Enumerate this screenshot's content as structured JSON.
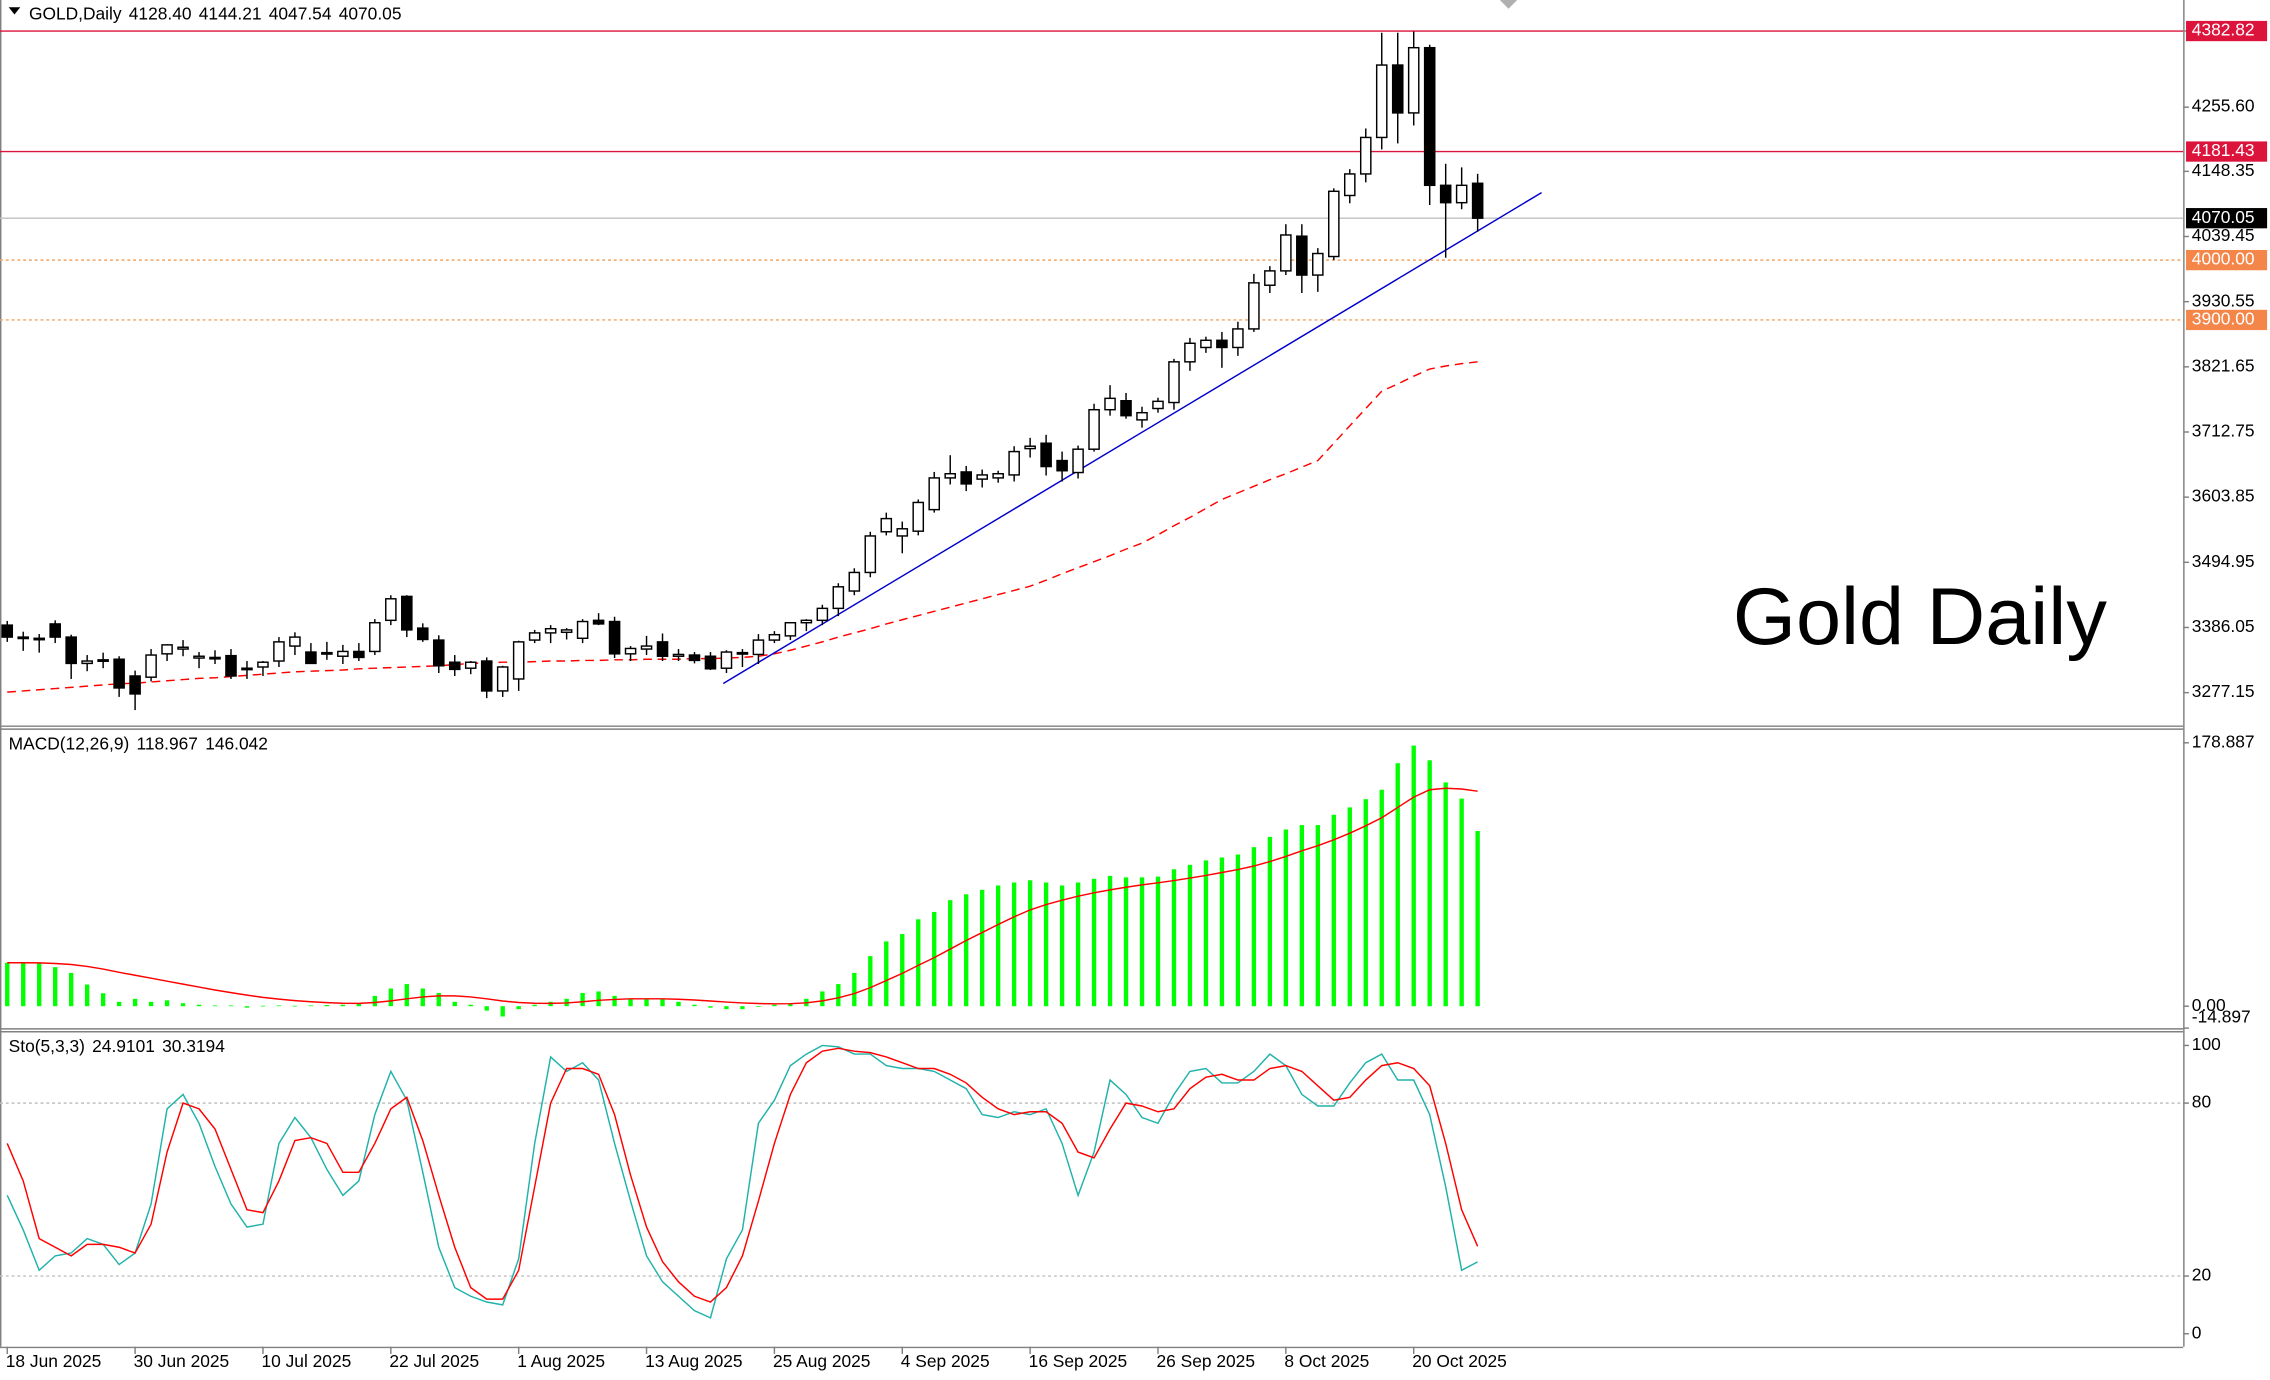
{
  "chart_data": [
    {
      "type": "candlestick",
      "title": "GOLD,Daily",
      "header_values": [
        "4128.40",
        "4144.21",
        "4047.54",
        "4070.05"
      ],
      "categories": [
        "18 Jun 2025",
        null,
        null,
        null,
        null,
        null,
        null,
        null,
        "30 Jun 2025",
        null,
        null,
        null,
        null,
        null,
        null,
        null,
        "10 Jul 2025",
        null,
        null,
        null,
        null,
        null,
        null,
        null,
        "22 Jul 2025",
        null,
        null,
        null,
        null,
        null,
        null,
        null,
        "1 Aug 2025",
        null,
        null,
        null,
        null,
        null,
        null,
        null,
        "13 Aug 2025",
        null,
        null,
        null,
        null,
        null,
        null,
        null,
        "25 Aug 2025",
        null,
        null,
        null,
        null,
        null,
        null,
        null,
        "4 Sep 2025",
        null,
        null,
        null,
        null,
        null,
        null,
        null,
        "16 Sep 2025",
        null,
        null,
        null,
        null,
        null,
        null,
        null,
        "26 Sep 2025",
        null,
        null,
        null,
        null,
        null,
        null,
        null,
        "8 Oct 2025",
        null,
        null,
        null,
        null,
        null,
        null,
        null,
        "20 Oct 2025",
        null,
        null,
        null,
        null
      ],
      "open": [
        3390,
        3370,
        3368,
        3392,
        3370,
        3326,
        3330,
        3333,
        3305,
        3303,
        3342,
        3350,
        3335,
        3336,
        3339,
        3318,
        3320,
        3330,
        3355,
        3345,
        3344,
        3338,
        3346,
        3346,
        3398,
        3438,
        3385,
        3365,
        3328,
        3318,
        3330,
        3280,
        3300,
        3365,
        3377,
        3378,
        3368,
        3398,
        3396,
        3342,
        3350,
        3362,
        3338,
        3340,
        3338,
        3318,
        3343,
        3341,
        3365,
        3372,
        3394,
        3398,
        3418,
        3447,
        3478,
        3546,
        3539,
        3547,
        3583,
        3636,
        3646,
        3634,
        3636,
        3641,
        3685,
        3694,
        3665,
        3645,
        3684,
        3750,
        3765,
        3733,
        3752,
        3762,
        3830,
        3854,
        3866,
        3854,
        3885,
        3958,
        3982,
        4040,
        3975,
        4006,
        4108,
        4144,
        4205,
        4326,
        4246,
        4355,
        4125,
        4096,
        4128.4
      ],
      "high": [
        3397,
        3379,
        3375,
        3398,
        3374,
        3340,
        3344,
        3338,
        3314,
        3350,
        3358,
        3365,
        3345,
        3348,
        3350,
        3330,
        3330,
        3370,
        3378,
        3360,
        3362,
        3357,
        3360,
        3400,
        3440,
        3440,
        3393,
        3373,
        3340,
        3330,
        3336,
        3322,
        3364,
        3382,
        3390,
        3385,
        3400,
        3410,
        3404,
        3355,
        3372,
        3376,
        3350,
        3345,
        3345,
        3348,
        3350,
        3375,
        3380,
        3395,
        3400,
        3424,
        3460,
        3485,
        3546,
        3578,
        3563,
        3600,
        3646,
        3674,
        3656,
        3650,
        3648,
        3689,
        3703,
        3708,
        3680,
        3690,
        3760,
        3791,
        3778,
        3755,
        3770,
        3835,
        3870,
        3872,
        3880,
        3897,
        3977,
        3990,
        4060,
        4060,
        4020,
        4120,
        4152,
        4220,
        4380,
        4380,
        4382,
        4360,
        4161,
        4155,
        4144.21
      ],
      "low": [
        3362,
        3347,
        3344,
        3360,
        3300,
        3313,
        3318,
        3270,
        3248,
        3296,
        3330,
        3338,
        3318,
        3325,
        3300,
        3300,
        3305,
        3320,
        3340,
        3330,
        3332,
        3325,
        3330,
        3340,
        3390,
        3370,
        3362,
        3310,
        3305,
        3308,
        3268,
        3270,
        3280,
        3360,
        3360,
        3366,
        3360,
        3390,
        3335,
        3330,
        3340,
        3330,
        3330,
        3326,
        3315,
        3310,
        3320,
        3325,
        3360,
        3365,
        3380,
        3390,
        3405,
        3440,
        3470,
        3540,
        3510,
        3540,
        3578,
        3625,
        3614,
        3620,
        3628,
        3630,
        3670,
        3640,
        3630,
        3635,
        3680,
        3740,
        3735,
        3720,
        3745,
        3750,
        3815,
        3845,
        3820,
        3840,
        3880,
        3945,
        3975,
        3945,
        3947,
        4000,
        4095,
        4130,
        4185,
        4195,
        4225,
        4092,
        4004,
        4085,
        4047.54
      ],
      "close": [
        3370,
        3368,
        3366,
        3370,
        3326,
        3330,
        3332,
        3285,
        3275,
        3340,
        3357,
        3353,
        3338,
        3334,
        3305,
        3316,
        3328,
        3362,
        3370,
        3326,
        3343,
        3346,
        3336,
        3394,
        3434,
        3382,
        3366,
        3322,
        3316,
        3328,
        3280,
        3320,
        3362,
        3377,
        3384,
        3382,
        3396,
        3392,
        3342,
        3351,
        3355,
        3338,
        3341,
        3331,
        3317,
        3345,
        3344,
        3365,
        3374,
        3394,
        3398,
        3418,
        3454,
        3478,
        3539,
        3568,
        3551,
        3595,
        3636,
        3643,
        3626,
        3641,
        3643,
        3680,
        3689,
        3655,
        3648,
        3684,
        3750,
        3769,
        3740,
        3745,
        3764,
        3830,
        3861,
        3866,
        3854,
        3885,
        3962,
        3982,
        4042,
        3975,
        4011,
        4115,
        4144,
        4205,
        4326,
        4246,
        4355,
        4125,
        4096,
        4125,
        4070.05
      ],
      "up_color": "#ffffff",
      "down_color": "#000000",
      "ylim": [
        3224.7,
        4434.7
      ],
      "yticks": [
        4382.82,
        {
          "value": 4255.6,
          "label": "4255.60"
        },
        4148.35,
        4039.45,
        3930.55,
        3821.65,
        3712.75,
        3603.85,
        3494.95,
        3386.05,
        3277.15
      ],
      "moving_average": {
        "color": "#ff0000",
        "values": [
          3278,
          3280,
          3282,
          3284,
          3286,
          3288,
          3290,
          3292,
          3293,
          3295,
          3297,
          3299,
          3301,
          3302,
          3304,
          3306,
          3308,
          3310,
          3312,
          3313,
          3314,
          3315,
          3317,
          3318,
          3319,
          3320,
          3321,
          3322,
          3324,
          3326,
          3327,
          3328,
          3328,
          3329,
          3330,
          3330,
          3331,
          3331,
          3332,
          3332,
          3333,
          3333,
          3333,
          3334,
          3334,
          3335,
          3336,
          3338,
          3342,
          3348,
          3355,
          3362,
          3370,
          3377,
          3384,
          3392,
          3399,
          3406,
          3413,
          3420,
          3427,
          3434,
          3441,
          3448,
          3455,
          3465,
          3476,
          3486,
          3496,
          3506,
          3517,
          3527,
          3541,
          3556,
          3570,
          3585,
          3600,
          3611,
          3622,
          3633,
          3643,
          3654,
          3665,
          3694,
          3723,
          3752,
          3781,
          3793,
          3806,
          3818,
          3823,
          3827,
          3830
        ]
      },
      "trendline": {
        "color": "#0000cd",
        "x": [
          44.8,
          96
        ],
        "values": [
          3292.5,
          4112.8
        ]
      },
      "levels": [
        {
          "value": 4382.82,
          "color": "#dc143c",
          "label_color": "#dc143c",
          "style": "solid"
        },
        {
          "value": 4181.43,
          "color": "#dc143c",
          "label_color": "#dc143c",
          "style": "solid"
        },
        {
          "value": 4070.05,
          "color": "#c0c0c0",
          "label_color": "#000000",
          "style": "solid"
        },
        {
          "value": 4000,
          "label": "4000.00",
          "color": "#f4a460",
          "label_color": "#f4864a",
          "style": "dotted"
        },
        {
          "value": 3900,
          "label": "3900.00",
          "color": "#f4a460",
          "label_color": "#f4864a",
          "style": "dotted"
        }
      ],
      "annotation": "Gold Daily"
    },
    {
      "type": "macd",
      "title": "MACD(12,26,9)",
      "header_values": [
        "118.967",
        "146.042"
      ],
      "series": [
        {
          "style": "bar",
          "color": "#00ff00",
          "values": [
            29.5,
            29.5,
            29.5,
            26.5,
            22.6,
            14.7,
            8.8,
            3,
            5,
            3,
            4,
            2,
            1,
            0.5,
            0.5,
            -1,
            0.3,
            0.5,
            0.3,
            0.5,
            0.8,
            1,
            2,
            7,
            12,
            15,
            12,
            9,
            3,
            1,
            -3,
            -7,
            -2,
            1,
            3,
            5,
            9,
            10,
            7,
            5,
            5,
            5,
            3,
            1,
            -1,
            -2,
            -2,
            0,
            1,
            2,
            5,
            10,
            15,
            22.6,
            34,
            44,
            49,
            59,
            64,
            72,
            76,
            79,
            82,
            84,
            85.5,
            84,
            82,
            84,
            86.5,
            88.5,
            87.5,
            87.5,
            88,
            93,
            96,
            99,
            101,
            103,
            108,
            115,
            120,
            123,
            123,
            130,
            135,
            140.6,
            147,
            165,
            177,
            167,
            152,
            141,
            118.967
          ]
        },
        {
          "style": "line",
          "color": "#ff0000",
          "values": [
            29.5,
            29.5,
            29.4,
            29,
            28.3,
            27,
            25.2,
            23,
            21,
            19,
            17,
            15,
            13,
            11,
            9.2,
            7.5,
            6,
            4.8,
            3.8,
            3,
            2.4,
            2,
            1.9,
            2.5,
            3.6,
            5,
            6.3,
            7,
            7,
            6.3,
            5,
            3.5,
            2.5,
            2,
            1.9,
            2.2,
            3,
            4,
            4.6,
            5,
            5,
            5,
            4.7,
            4.2,
            3.5,
            2.8,
            2.2,
            1.8,
            1.6,
            1.7,
            2.3,
            3.6,
            5.7,
            8.6,
            12.6,
            17.4,
            22.3,
            27.7,
            33,
            38.8,
            44.6,
            50,
            55.5,
            60.7,
            65.4,
            69,
            72,
            74.7,
            77,
            79,
            80.8,
            82.4,
            83.8,
            85.3,
            87,
            88.8,
            90.8,
            92.8,
            95.2,
            98.2,
            101.7,
            105.5,
            109,
            113,
            117.5,
            122.5,
            128,
            135,
            142,
            147,
            148,
            147.5,
            146.042
          ]
        }
      ],
      "ylim": [
        -14.897,
        187.7
      ],
      "yticks": [
        178.887,
        {
          "value": 0,
          "label": "0.00"
        },
        -14.897
      ]
    },
    {
      "type": "stochastic",
      "title": "Sto(5,3,3)",
      "header_values": [
        "24.9101",
        "30.3194"
      ],
      "series": [
        {
          "style": "line",
          "color": "#20b2aa",
          "values": [
            48,
            36,
            22,
            27,
            28,
            33,
            31,
            24,
            28,
            45,
            78,
            83,
            73,
            58,
            45,
            37,
            38,
            66,
            75,
            68,
            57,
            48,
            53,
            76,
            91,
            81,
            56,
            30,
            16,
            13,
            11,
            10,
            26,
            66,
            96,
            91,
            94,
            88,
            66,
            46,
            27,
            18,
            13,
            8,
            5.5,
            26,
            36,
            73,
            81,
            93,
            97,
            100,
            99.5,
            97,
            97,
            93,
            92,
            92,
            91,
            88,
            85,
            76,
            75,
            77,
            76,
            78,
            66,
            48,
            63,
            88,
            83,
            75,
            73,
            83,
            91,
            92,
            87,
            87,
            91,
            97,
            93,
            83,
            79,
            79,
            87,
            94,
            97,
            88,
            88,
            76,
            51,
            22,
            24.9101
          ]
        },
        {
          "style": "line",
          "color": "#ff0000",
          "values": [
            66,
            53,
            33,
            30,
            27,
            31,
            31,
            30,
            28,
            38,
            63,
            80,
            78,
            71,
            57,
            43,
            42,
            53,
            67,
            68,
            66,
            56,
            56,
            66,
            78,
            82,
            67,
            48,
            30,
            16,
            12,
            12,
            22,
            51,
            80,
            92,
            92,
            90,
            76,
            55,
            37,
            25,
            18,
            13,
            11,
            16,
            27,
            46,
            66,
            83,
            94,
            98,
            99,
            98,
            97.5,
            96,
            94,
            92,
            92,
            90,
            87,
            82,
            78,
            76,
            77,
            77,
            73,
            63,
            61,
            71,
            80,
            79,
            77,
            78,
            85,
            89,
            90,
            88,
            88,
            92,
            93,
            91,
            86,
            81,
            82,
            88,
            93,
            94,
            92,
            86,
            66,
            43,
            30.3194
          ]
        }
      ],
      "ylim": [
        -4.5,
        104.5
      ],
      "yticks": [
        100,
        80,
        20,
        0
      ],
      "levels": [
        80,
        20
      ]
    }
  ]
}
